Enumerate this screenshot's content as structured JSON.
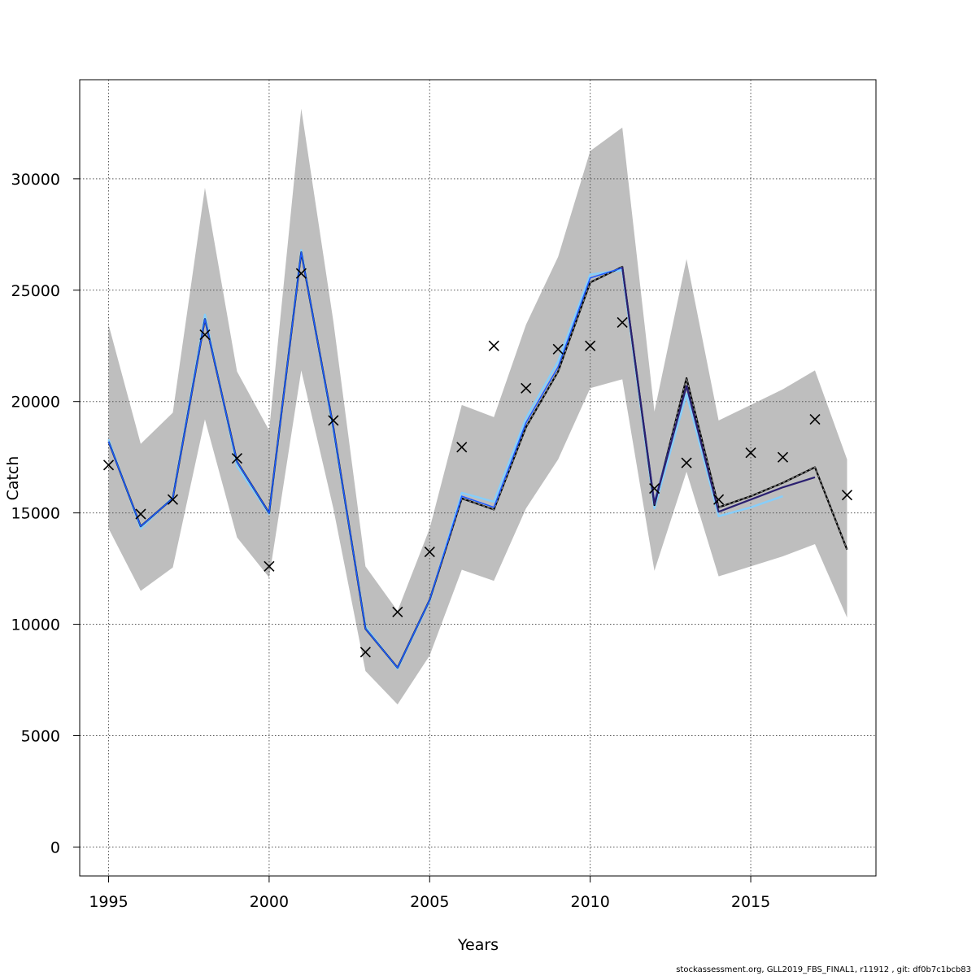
{
  "footnote": "stockassessment.org, GLL2019_FBS_FINAL1, r11912 , git: df0b7c1bcb83",
  "chart_data": {
    "type": "line",
    "title": "",
    "xlabel": "Years",
    "ylabel": "Catch",
    "xlim": [
      1994.1,
      2018.9
    ],
    "ylim": [
      -1300,
      34450
    ],
    "x_ticks": [
      1995,
      2000,
      2005,
      2010,
      2015
    ],
    "y_ticks": [
      0,
      5000,
      10000,
      15000,
      20000,
      25000,
      30000
    ],
    "grid": true,
    "colors": {
      "band": "#bebebe",
      "main_line": "#000000",
      "blue_line": "#1e5aff",
      "light_line": "#87cefa",
      "purple_line": "#2b2070",
      "observed": "#000000",
      "grid": "#555555"
    },
    "confidence_band": {
      "x": [
        1995,
        1996,
        1997,
        1998,
        1999,
        2000,
        2001,
        2002,
        2003,
        2004,
        2005,
        2006,
        2007,
        2008,
        2009,
        2010,
        2011,
        2012,
        2013,
        2014,
        2015,
        2016,
        2017,
        2018
      ],
      "lower": [
        14300,
        11500,
        12550,
        19200,
        13900,
        12100,
        21400,
        15200,
        7900,
        6400,
        8600,
        12450,
        11950,
        15200,
        17400,
        20600,
        21000,
        12400,
        16850,
        12150,
        12600,
        13050,
        13600,
        10300
      ],
      "upper": [
        23450,
        18100,
        19500,
        29600,
        21350,
        18700,
        33150,
        23600,
        12600,
        10600,
        14300,
        19850,
        19300,
        23450,
        26500,
        31250,
        32300,
        19550,
        26400,
        19150,
        19850,
        20550,
        21400,
        17400
      ]
    },
    "series": [
      {
        "key": "main",
        "x": [
          1995,
          1996,
          1997,
          1998,
          1999,
          2000,
          2001,
          2002,
          2003,
          2004,
          2005,
          2006,
          2007,
          2008,
          2009,
          2010,
          2011,
          2012,
          2013,
          2014,
          2015,
          2016,
          2017,
          2018
        ],
        "values": [
          18200,
          14400,
          15650,
          23700,
          17300,
          15000,
          26700,
          18850,
          9800,
          8050,
          11100,
          15650,
          15150,
          18850,
          21350,
          25350,
          26050,
          15350,
          21050,
          15250,
          15750,
          16350,
          17050,
          13350
        ]
      },
      {
        "key": "blue",
        "x": [
          1995,
          1996,
          1997,
          1998,
          1999,
          2000,
          2001,
          2002,
          2003,
          2004,
          2005,
          2006,
          2007,
          2008,
          2009,
          2010,
          2011,
          2012,
          2013
        ],
        "values": [
          18200,
          14400,
          15650,
          23700,
          17300,
          15000,
          26700,
          18850,
          9800,
          8050,
          11100,
          15750,
          15250,
          19050,
          21550,
          25550,
          26000,
          15500,
          20700
        ]
      },
      {
        "key": "light",
        "x": [
          1995,
          1996,
          1997,
          1998,
          1999,
          2000,
          2001,
          2002,
          2003,
          2004,
          2005,
          2006,
          2007,
          2008,
          2009,
          2010,
          2011,
          2012,
          2013,
          2014,
          2015,
          2016
        ],
        "values": [
          18300,
          14300,
          15700,
          23900,
          17100,
          14950,
          26800,
          18700,
          9900,
          8000,
          11050,
          15900,
          15500,
          19250,
          21800,
          25700,
          25900,
          15200,
          20350,
          14850,
          15250,
          15750
        ]
      },
      {
        "key": "purple",
        "x": [
          2011,
          2012,
          2013,
          2014,
          2015,
          2016,
          2017
        ],
        "values": [
          26050,
          15400,
          20700,
          15050,
          15600,
          16150,
          16600
        ]
      }
    ],
    "observed": {
      "x": [
        1995,
        1996,
        1997,
        1998,
        1999,
        2000,
        2001,
        2002,
        2003,
        2004,
        2005,
        2006,
        2007,
        2008,
        2009,
        2010,
        2011,
        2012,
        2013,
        2014,
        2015,
        2016,
        2017,
        2018
      ],
      "values": [
        17150,
        14950,
        15600,
        23000,
        17450,
        12600,
        25750,
        19150,
        8750,
        10550,
        13250,
        17950,
        22500,
        20600,
        22350,
        22500,
        23550,
        16100,
        17250,
        15600,
        17700,
        17500,
        19200,
        15800
      ]
    }
  }
}
